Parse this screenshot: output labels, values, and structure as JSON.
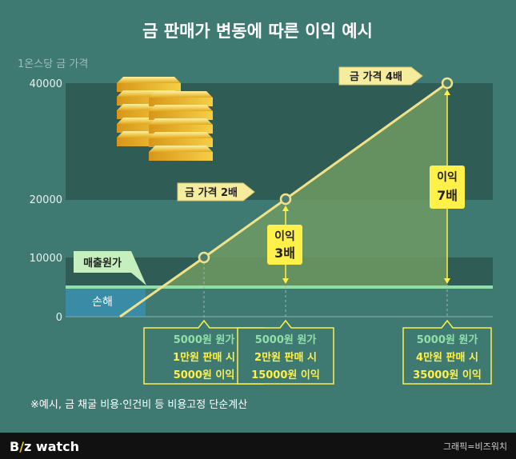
{
  "title": "금 판매가 변동에 따른 이익 예시",
  "chart_data": {
    "type": "line",
    "ylabel": "1온스당 금 가격",
    "yticks": [
      0,
      10000,
      20000,
      40000
    ],
    "ylim": [
      0,
      40000
    ],
    "cost_label": "매출원가",
    "cost_value": 5000,
    "loss_label": "손해",
    "points": [
      {
        "value": 10000,
        "label": ""
      },
      {
        "value": 20000,
        "label": "금 가격 2배"
      },
      {
        "value": 40000,
        "label": "금 가격 4배"
      }
    ],
    "profit_notes": [
      {
        "l1": "이익",
        "l2": "3배"
      },
      {
        "l1": "이익",
        "l2": "7배"
      }
    ],
    "boxes": [
      {
        "line1": "5000원 원가",
        "line2": "1만원 판매 시",
        "line3": "5000원 이익"
      },
      {
        "line1": "5000원 원가",
        "line2": "2만원 판매 시",
        "line3": "15000원 이익"
      },
      {
        "line1": "5000원 원가",
        "line2": "4만원 판매 시",
        "line3": "35000원 이익"
      }
    ]
  },
  "footnote": "※예시, 금 채굴 비용·인건비 등 비용고정 단순계산",
  "brand": {
    "part1": "B",
    "part2": "/",
    "part3": "z watch"
  },
  "credit": "그래픽=비즈워치",
  "colors": {
    "background": "#3f7a72",
    "band": "#2f5c55",
    "line": "#f1e28a",
    "cost": "#8fe0a8",
    "loss": "#3a8ca6",
    "arrow": "#fff04a",
    "callout": "#f6ec9d"
  }
}
